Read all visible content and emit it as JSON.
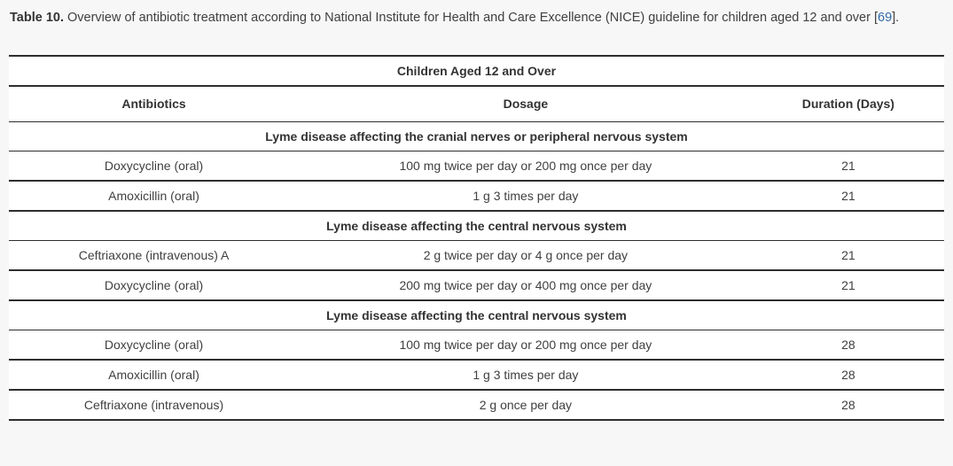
{
  "caption": {
    "label": "Table 10.",
    "text": " Overview of antibiotic treatment according to National Institute for Health and Care Excellence (NICE) guideline for children aged 12 and over ",
    "bracket_open": "[",
    "ref": "69",
    "bracket_close": "]."
  },
  "table": {
    "title": "Children Aged 12 and Over",
    "columns": [
      "Antibiotics",
      "Dosage",
      "Duration (Days)"
    ],
    "sections": [
      {
        "header": "Lyme disease affecting the cranial nerves or peripheral nervous system",
        "rows": [
          {
            "antibiotic": "Doxycycline (oral)",
            "dosage": "100 mg twice per day or 200 mg once per day",
            "duration": "21"
          },
          {
            "antibiotic": "Amoxicillin (oral)",
            "dosage": "1 g 3 times per day",
            "duration": "21"
          }
        ]
      },
      {
        "header": "Lyme disease affecting the central nervous system",
        "rows": [
          {
            "antibiotic": "Ceftriaxone (intravenous) A",
            "dosage": "2 g twice per day or 4 g once per day",
            "duration": "21"
          },
          {
            "antibiotic": "Doxycycline (oral)",
            "dosage": "200 mg twice per day or 400 mg once per day",
            "duration": "21"
          }
        ]
      },
      {
        "header": "Lyme disease affecting the central nervous system",
        "rows": [
          {
            "antibiotic": "Doxycycline (oral)",
            "dosage": "100 mg twice per day or 200 mg once per day",
            "duration": "28"
          },
          {
            "antibiotic": "Amoxicillin (oral)",
            "dosage": "1 g 3 times per day",
            "duration": "28"
          },
          {
            "antibiotic": "Ceftriaxone (intravenous)",
            "dosage": "2 g once per day",
            "duration": "28"
          }
        ]
      }
    ]
  },
  "colors": {
    "page_background": "#f7f7f8",
    "table_background": "#ffffff",
    "border": "#2e2e2e",
    "text": "#404040",
    "link": "#2f6aa9"
  }
}
